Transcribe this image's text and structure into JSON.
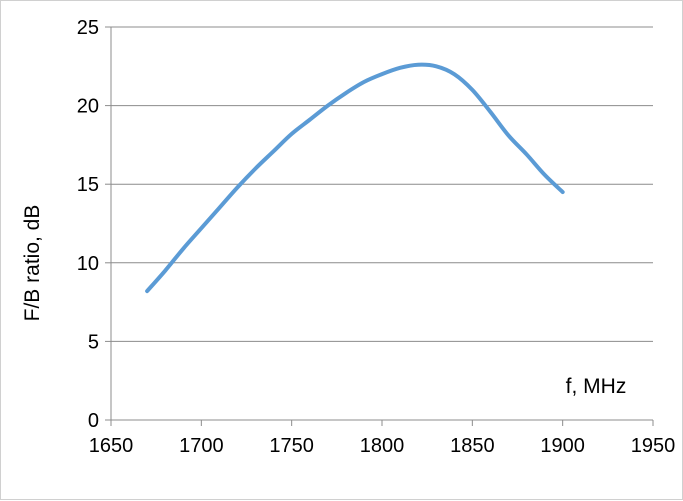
{
  "chart_data": {
    "type": "line",
    "title": "",
    "xlabel": "f, MHz",
    "ylabel": "F/B ratio, dB",
    "xlim": [
      1650,
      1950
    ],
    "ylim": [
      0,
      25
    ],
    "x_ticks": [
      1650,
      1700,
      1750,
      1800,
      1850,
      1900,
      1950
    ],
    "y_ticks": [
      0,
      5,
      10,
      15,
      20,
      25
    ],
    "grid": "horizontal",
    "legend": "none",
    "series": [
      {
        "color": "#5b9bd5",
        "x": [
          1670,
          1680,
          1690,
          1700,
          1710,
          1720,
          1730,
          1740,
          1750,
          1760,
          1770,
          1780,
          1790,
          1800,
          1810,
          1820,
          1830,
          1840,
          1850,
          1860,
          1870,
          1880,
          1890,
          1900
        ],
        "y": [
          8.2,
          9.5,
          10.9,
          12.2,
          13.5,
          14.8,
          16.0,
          17.1,
          18.2,
          19.1,
          20.0,
          20.8,
          21.5,
          22.0,
          22.4,
          22.6,
          22.5,
          22.0,
          21.0,
          19.6,
          18.1,
          16.9,
          15.6,
          14.5
        ]
      }
    ]
  }
}
